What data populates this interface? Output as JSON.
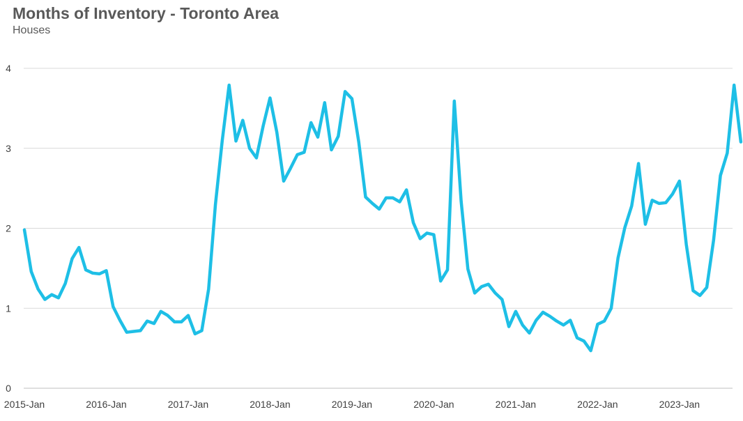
{
  "chart_data": {
    "type": "line",
    "title": "Months of Inventory - Toronto Area",
    "subtitle": "Houses",
    "xlabel": "",
    "ylabel": "",
    "ylim": [
      0,
      4
    ],
    "y_ticks": [
      "0",
      "1",
      "2",
      "3",
      "4"
    ],
    "x_ticks": [
      "2015-Jan",
      "2016-Jan",
      "2017-Jan",
      "2018-Jan",
      "2019-Jan",
      "2020-Jan",
      "2021-Jan",
      "2022-Jan",
      "2023-Jan"
    ],
    "grid": true,
    "legend": "none",
    "colors": {
      "line": "#1ebfe6",
      "grid": "#d9d9d9",
      "axis": "#bfbfbf",
      "text": "#595959"
    },
    "x": [
      "2015-01",
      "2015-02",
      "2015-03",
      "2015-04",
      "2015-05",
      "2015-06",
      "2015-07",
      "2015-08",
      "2015-09",
      "2015-10",
      "2015-11",
      "2015-12",
      "2016-01",
      "2016-02",
      "2016-03",
      "2016-04",
      "2016-05",
      "2016-06",
      "2016-07",
      "2016-08",
      "2016-09",
      "2016-10",
      "2016-11",
      "2016-12",
      "2017-01",
      "2017-02",
      "2017-03",
      "2017-04",
      "2017-05",
      "2017-06",
      "2017-07",
      "2017-08",
      "2017-09",
      "2017-10",
      "2017-11",
      "2017-12",
      "2018-01",
      "2018-02",
      "2018-03",
      "2018-04",
      "2018-05",
      "2018-06",
      "2018-07",
      "2018-08",
      "2018-09",
      "2018-10",
      "2018-11",
      "2018-12",
      "2019-01",
      "2019-02",
      "2019-03",
      "2019-04",
      "2019-05",
      "2019-06",
      "2019-07",
      "2019-08",
      "2019-09",
      "2019-10",
      "2019-11",
      "2019-12",
      "2020-01",
      "2020-02",
      "2020-03",
      "2020-04",
      "2020-05",
      "2020-06",
      "2020-07",
      "2020-08",
      "2020-09",
      "2020-10",
      "2020-11",
      "2020-12",
      "2021-01",
      "2021-02",
      "2021-03",
      "2021-04",
      "2021-05",
      "2021-06",
      "2021-07",
      "2021-08",
      "2021-09",
      "2021-10",
      "2021-11",
      "2021-12",
      "2022-01",
      "2022-02",
      "2022-03",
      "2022-04",
      "2022-05",
      "2022-06",
      "2022-07",
      "2022-08",
      "2022-09",
      "2022-10",
      "2022-11",
      "2022-12",
      "2023-01",
      "2023-02",
      "2023-03",
      "2023-04",
      "2023-05",
      "2023-06",
      "2023-07",
      "2023-08",
      "2023-09",
      "2023-10"
    ],
    "series": [
      {
        "values": [
          1.98,
          1.46,
          1.24,
          1.11,
          1.17,
          1.13,
          1.31,
          1.62,
          1.76,
          1.48,
          1.44,
          1.43,
          1.47,
          1.02,
          0.85,
          0.7,
          0.71,
          0.72,
          0.84,
          0.81,
          0.96,
          0.91,
          0.83,
          0.83,
          0.91,
          0.68,
          0.72,
          1.24,
          2.3,
          3.1,
          3.79,
          3.09,
          3.35,
          3.0,
          2.88,
          3.28,
          3.63,
          3.2,
          2.59,
          2.75,
          2.92,
          2.95,
          3.32,
          3.14,
          3.57,
          2.98,
          3.15,
          3.71,
          3.62,
          3.08,
          2.39,
          2.31,
          2.24,
          2.38,
          2.38,
          2.33,
          2.48,
          2.07,
          1.87,
          1.94,
          1.92,
          1.34,
          1.48,
          3.59,
          2.34,
          1.49,
          1.19,
          1.27,
          1.3,
          1.19,
          1.11,
          0.77,
          0.96,
          0.79,
          0.69,
          0.85,
          0.95,
          0.9,
          0.84,
          0.79,
          0.85,
          0.63,
          0.59,
          0.47,
          0.8,
          0.84,
          1.0,
          1.63,
          2.01,
          2.28,
          2.81,
          2.05,
          2.35,
          2.31,
          2.32,
          2.43,
          2.59,
          1.8,
          1.22,
          1.16,
          1.26,
          1.85,
          2.66,
          2.94,
          3.79,
          3.08
        ]
      }
    ]
  }
}
